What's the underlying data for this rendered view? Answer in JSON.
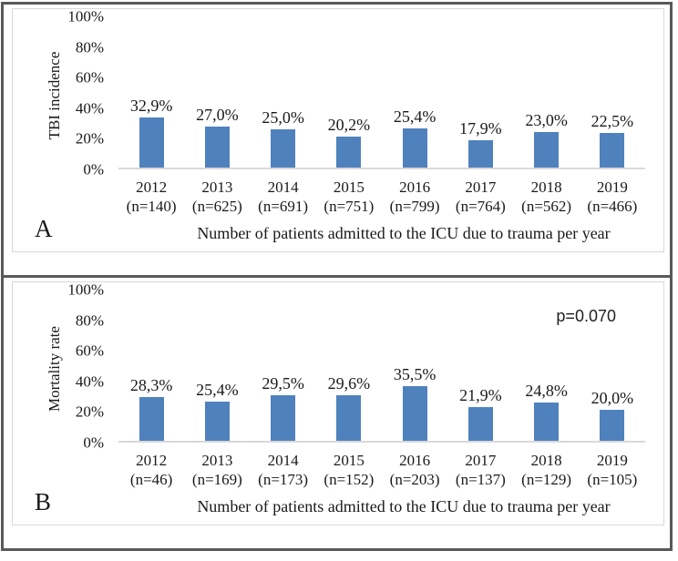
{
  "colors": {
    "bar": "#4F81BD",
    "outer_border": "#59595B",
    "panel_border": "#D9D9D9",
    "axis_line": "#D9D9D9",
    "text": "#1A1A1A"
  },
  "chart_data": [
    {
      "type": "bar",
      "panel_label": "A",
      "title": "",
      "ylabel": "TBI incidence",
      "xlabel": "Number of patients admitted to the ICU due to trauma per year",
      "ylim": [
        0,
        100
      ],
      "grid": false,
      "legend": "none",
      "yticks": [
        "100%",
        "80%",
        "60%",
        "40%",
        "20%",
        "0%"
      ],
      "categories": [
        "2012",
        "2013",
        "2014",
        "2015",
        "2016",
        "2017",
        "2018",
        "2019"
      ],
      "n_labels": [
        "(n=140)",
        "(n=625)",
        "(n=691)",
        "(n=751)",
        "(n=799)",
        "(n=764)",
        "(n=562)",
        "(n=466)"
      ],
      "values": [
        32.9,
        27.0,
        25.0,
        20.2,
        25.4,
        17.9,
        23.0,
        22.5
      ],
      "value_labels": [
        "32,9%",
        "27,0%",
        "25,0%",
        "20,2%",
        "25,4%",
        "17,9%",
        "23,0%",
        "22,5%"
      ],
      "bar_color": "#4F81BD",
      "annotation": ""
    },
    {
      "type": "bar",
      "panel_label": "B",
      "title": "",
      "ylabel": "Mortality rate",
      "xlabel": "Number of patients admitted to the ICU due to trauma per year",
      "ylim": [
        0,
        100
      ],
      "grid": false,
      "legend": "none",
      "yticks": [
        "100%",
        "80%",
        "60%",
        "40%",
        "20%",
        "0%"
      ],
      "categories": [
        "2012",
        "2013",
        "2014",
        "2015",
        "2016",
        "2017",
        "2018",
        "2019"
      ],
      "n_labels": [
        "(n=46)",
        "(n=169)",
        "(n=173)",
        "(n=152)",
        "(n=203)",
        "(n=137)",
        "(n=129)",
        "(n=105)"
      ],
      "values": [
        28.3,
        25.4,
        29.5,
        29.6,
        35.5,
        21.9,
        24.8,
        20.0
      ],
      "value_labels": [
        "28,3%",
        "25,4%",
        "29,5%",
        "29,6%",
        "35,5%",
        "21,9%",
        "24,8%",
        "20,0%"
      ],
      "bar_color": "#4F81BD",
      "annotation": "p=0.070"
    }
  ]
}
